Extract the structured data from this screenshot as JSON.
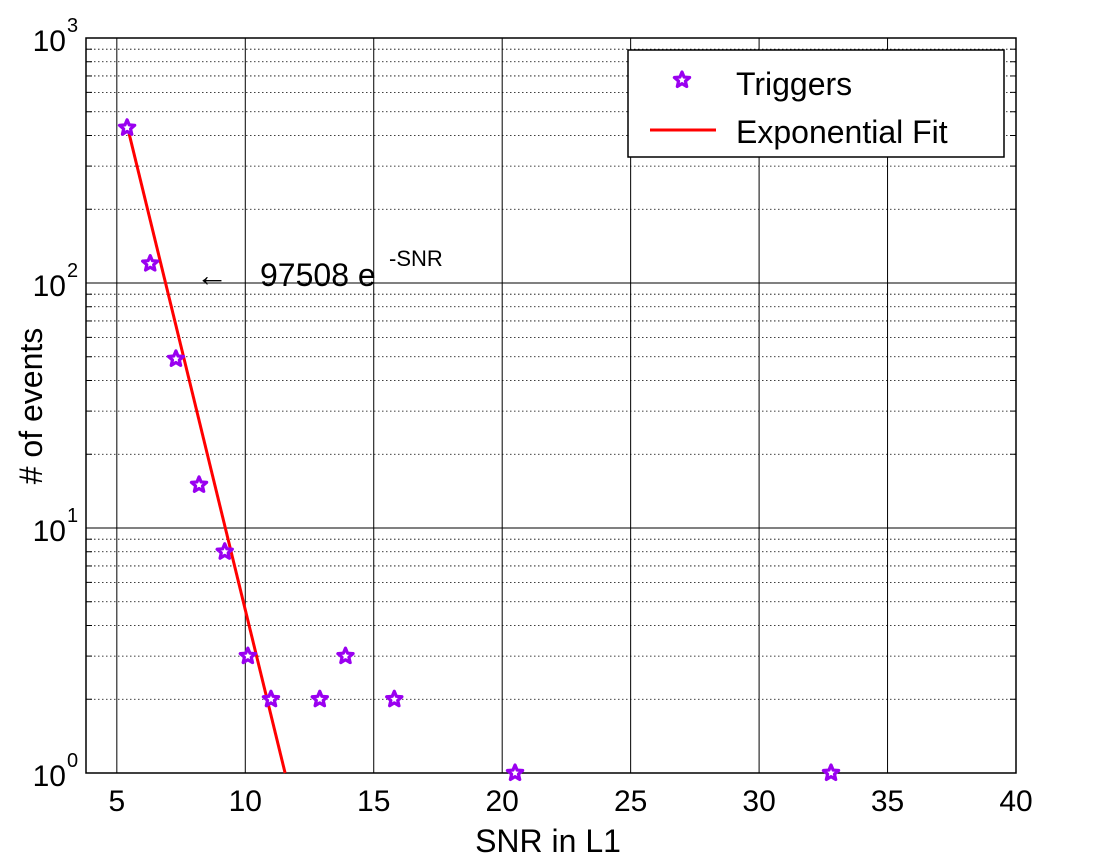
{
  "chart_data": {
    "type": "scatter",
    "xlabel": "SNR in L1",
    "ylabel": "# of events",
    "xlim": [
      3.8,
      40
    ],
    "ylim": [
      1,
      1000
    ],
    "yscale": "log",
    "grid": true,
    "legend_position": "top-right",
    "x_ticks": [
      "5",
      "10",
      "15",
      "20",
      "25",
      "30",
      "35",
      "40"
    ],
    "y_ticks": [
      {
        "base": "10",
        "exp": "0"
      },
      {
        "base": "10",
        "exp": "1"
      },
      {
        "base": "10",
        "exp": "2"
      },
      {
        "base": "10",
        "exp": "3"
      }
    ],
    "series": [
      {
        "name": "Triggers",
        "kind": "markers",
        "marker": "star",
        "color": "#9a00f0",
        "x": [
          5.4,
          6.3,
          7.3,
          8.2,
          9.2,
          10.1,
          11.0,
          12.9,
          13.9,
          15.8,
          20.5,
          32.8
        ],
        "y": [
          430,
          120,
          49,
          15,
          8,
          3,
          2,
          2,
          3,
          2,
          1,
          1
        ]
      },
      {
        "name": "Exponential Fit",
        "kind": "line",
        "color": "#ff0000",
        "x": [
          5.4,
          11.55
        ],
        "y": [
          440,
          1
        ]
      }
    ],
    "annotation": {
      "arrow": "←",
      "text": "97508 e",
      "superscript": "-SNR"
    }
  }
}
